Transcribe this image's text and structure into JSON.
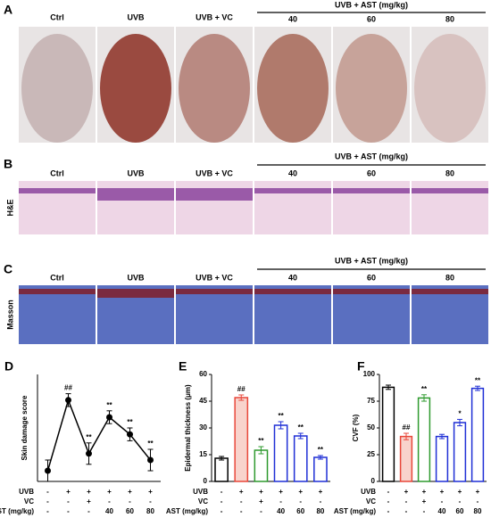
{
  "panels": [
    {
      "letter": "A",
      "labels": [
        "Ctrl",
        "UVB",
        "UVB + VC"
      ],
      "group": "UVB + AST (mg/kg)",
      "doses": [
        "40",
        "60",
        "80"
      ]
    },
    {
      "letter": "B",
      "labels": [
        "Ctrl",
        "UVB",
        "UVB + VC"
      ],
      "group": "UVB + AST (mg/kg)",
      "doses": [
        "40",
        "60",
        "80"
      ],
      "row_label": "H&E"
    },
    {
      "letter": "C",
      "labels": [
        "Ctrl",
        "UVB",
        "UVB + VC"
      ],
      "group": "UVB + AST (mg/kg)",
      "doses": [
        "40",
        "60",
        "80"
      ],
      "row_label": "Masson"
    }
  ],
  "chart_data": [
    {
      "type": "line",
      "letter": "D",
      "y_label": "Skin damage score",
      "ylim": [
        0,
        5
      ],
      "categories": [
        null,
        null,
        null,
        null,
        null,
        null
      ],
      "values": [
        0.5,
        3.8,
        1.3,
        3.0,
        2.2,
        1.0
      ],
      "errors": [
        0.5,
        0.3,
        0.5,
        0.3,
        0.3,
        0.5
      ],
      "color": "#000000",
      "annotations": [
        null,
        "##",
        "**",
        "**",
        "**",
        "**"
      ],
      "rows": [
        {
          "name": "UVB",
          "cells": [
            "-",
            "+",
            "+",
            "+",
            "+",
            "+"
          ]
        },
        {
          "name": "VC",
          "cells": [
            "-",
            "-",
            "+",
            "-",
            "-",
            "-"
          ]
        },
        {
          "name": "AST (mg/kg)",
          "cells": [
            "-",
            "-",
            "-",
            "40",
            "60",
            "80"
          ]
        }
      ]
    },
    {
      "type": "bar",
      "letter": "E",
      "y_label": "Epidermal thickness (μm)",
      "ylim": [
        0,
        60
      ],
      "yticks": [
        0,
        15,
        30,
        45,
        60
      ],
      "categories": [
        null,
        null,
        null,
        null,
        null,
        null
      ],
      "values": [
        13,
        47,
        17.5,
        31.5,
        25.5,
        13.5
      ],
      "errors": [
        1,
        1.5,
        2,
        2,
        1.5,
        1
      ],
      "colors": [
        "#000000",
        "#e8473a",
        "#2e9a2e",
        "#1f2fd6",
        "#1f2fd6",
        "#1f2fd6"
      ],
      "fills": [
        "#ffffff",
        "#f8d3cc",
        "#ffffff",
        "#ffffff",
        "#ffffff",
        "#ffffff"
      ],
      "annotations": [
        null,
        "##",
        "**",
        "**",
        "**",
        "**"
      ],
      "rows": [
        {
          "name": "UVB",
          "cells": [
            "-",
            "+",
            "+",
            "+",
            "+",
            "+"
          ]
        },
        {
          "name": "VC",
          "cells": [
            "-",
            "-",
            "+",
            "-",
            "-",
            "-"
          ]
        },
        {
          "name": "AST (mg/kg)",
          "cells": [
            "-",
            "-",
            "-",
            "40",
            "60",
            "80"
          ]
        }
      ]
    },
    {
      "type": "bar",
      "letter": "F",
      "y_label": "CVF (%)",
      "ylim": [
        0,
        100
      ],
      "yticks": [
        0,
        25,
        50,
        75,
        100
      ],
      "categories": [
        null,
        null,
        null,
        null,
        null,
        null
      ],
      "values": [
        88,
        42,
        78,
        42,
        55,
        87
      ],
      "errors": [
        2,
        3,
        3,
        2,
        3,
        2
      ],
      "colors": [
        "#000000",
        "#e8473a",
        "#2e9a2e",
        "#1f2fd6",
        "#1f2fd6",
        "#1f2fd6"
      ],
      "fills": [
        "#ffffff",
        "#f8d3cc",
        "#ffffff",
        "#ffffff",
        "#ffffff",
        "#ffffff"
      ],
      "annotations": [
        null,
        "##",
        "**",
        null,
        "*",
        "**"
      ],
      "rows": [
        {
          "name": "UVB",
          "cells": [
            "-",
            "+",
            "+",
            "+",
            "+",
            "+"
          ]
        },
        {
          "name": "VC",
          "cells": [
            "-",
            "-",
            "+",
            "-",
            "-",
            "-"
          ]
        },
        {
          "name": "AST (mg/kg)",
          "cells": [
            "-",
            "-",
            "-",
            "40",
            "60",
            "80"
          ]
        }
      ]
    }
  ]
}
